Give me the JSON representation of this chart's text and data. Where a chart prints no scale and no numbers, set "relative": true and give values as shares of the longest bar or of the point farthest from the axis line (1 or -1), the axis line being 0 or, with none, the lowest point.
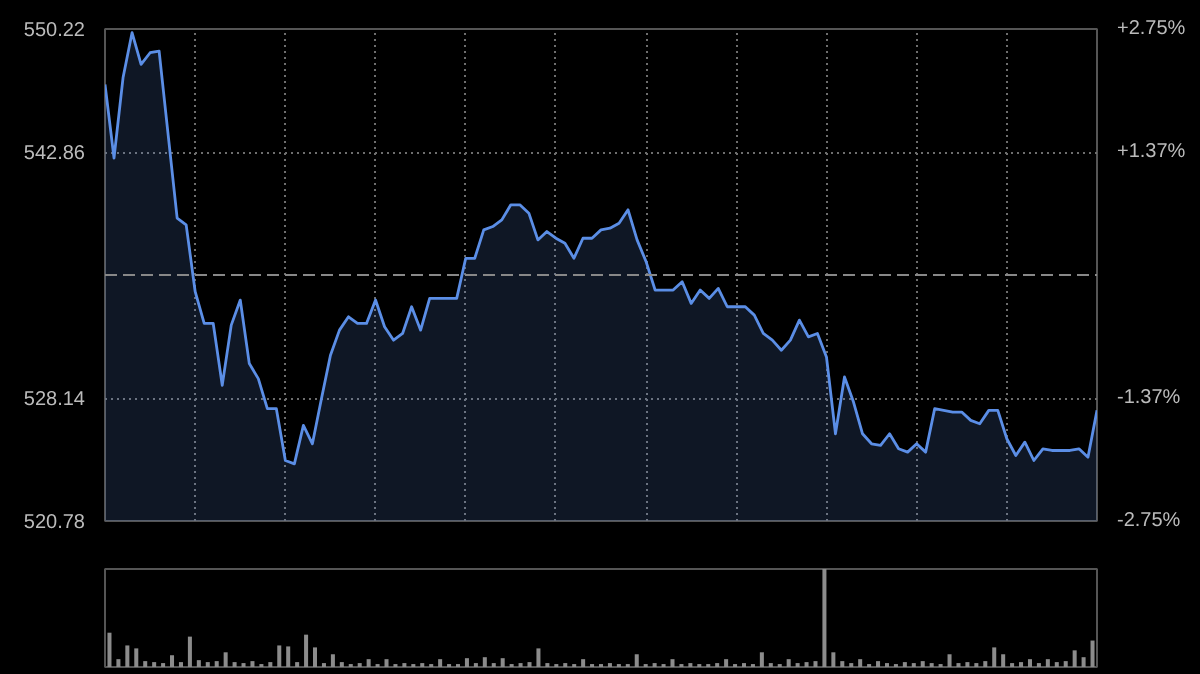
{
  "chart_data": [
    {
      "type": "area",
      "categories": [
        null,
        null,
        null,
        null,
        null,
        null,
        null,
        null,
        null,
        null,
        null,
        null,
        null,
        null,
        null,
        null,
        null,
        null,
        null,
        null,
        null,
        null,
        null,
        null,
        null,
        null,
        null,
        null,
        null,
        null,
        null,
        null,
        null,
        null,
        null,
        null,
        null,
        null,
        null,
        null,
        null,
        null,
        null,
        null,
        null,
        null,
        null,
        null,
        null,
        null,
        null,
        null,
        null,
        null,
        null,
        null,
        null,
        null,
        null,
        null,
        null,
        null,
        null,
        null,
        null,
        null,
        null,
        null,
        null,
        null,
        null,
        null,
        null,
        null,
        null,
        null,
        null,
        null,
        null,
        null,
        null,
        null,
        null,
        null,
        null,
        null,
        null,
        null,
        null,
        null,
        null,
        null,
        null,
        null,
        null,
        null,
        null,
        null,
        null,
        null,
        null,
        null,
        null,
        null,
        null,
        null,
        null,
        null,
        null,
        null,
        null
      ],
      "series": [
        {
          "color": "#5b8ee6",
          "values": [
            546.9,
            542.5,
            547.3,
            550.0,
            548.1,
            548.8,
            548.9,
            543.9,
            538.9,
            538.5,
            534.5,
            532.6,
            532.6,
            528.9,
            532.5,
            534.0,
            530.2,
            529.3,
            527.5,
            527.5,
            524.4,
            524.2,
            526.5,
            525.4,
            528.1,
            530.7,
            532.2,
            533.0,
            532.6,
            532.6,
            534.0,
            532.4,
            531.6,
            532.0,
            533.6,
            532.2,
            534.1,
            534.1,
            534.1,
            534.1,
            536.5,
            536.5,
            538.2,
            538.4,
            538.8,
            539.7,
            539.7,
            539.2,
            537.6,
            538.1,
            537.7,
            537.4,
            536.5,
            537.7,
            537.7,
            538.2,
            538.3,
            538.6,
            539.4,
            537.6,
            536.3,
            534.6,
            534.6,
            534.6,
            535.1,
            533.8,
            534.6,
            534.1,
            534.7,
            533.6,
            533.6,
            533.6,
            533.1,
            532.0,
            531.6,
            531.0,
            531.6,
            532.8,
            531.8,
            532.0,
            530.6,
            526.0,
            529.4,
            527.9,
            526.0,
            525.4,
            525.3,
            526.0,
            525.1,
            524.9,
            525.4,
            524.9,
            527.5,
            527.4,
            527.3,
            527.3,
            526.8,
            526.6,
            527.4,
            527.4,
            525.7,
            524.7,
            525.5,
            524.4,
            525.1,
            525.0,
            525.0,
            525.0,
            525.1,
            524.6,
            527.4
          ]
        }
      ],
      "ylim": [
        520.78,
        550.22
      ],
      "yticks": [
        550.22,
        542.86,
        528.14,
        520.78
      ],
      "y2lim": [
        -2.75,
        2.75
      ],
      "y2ticks": [
        {
          "value": 2.75,
          "label": "+2.75%"
        },
        {
          "value": 1.37,
          "label": "+1.37%"
        },
        {
          "value": -1.37,
          "label": "-1.37%"
        },
        {
          "value": -2.75,
          "label": "-2.75%"
        }
      ],
      "ref_lines": [
        {
          "axis": "y",
          "value": 535.5,
          "color": "#888888",
          "line_style": "dashed"
        }
      ],
      "grid": true,
      "tick_labels": "y"
    },
    {
      "type": "bar",
      "relative": true,
      "categories": [
        null,
        null,
        null,
        null,
        null,
        null,
        null,
        null,
        null,
        null,
        null,
        null,
        null,
        null,
        null,
        null,
        null,
        null,
        null,
        null,
        null,
        null,
        null,
        null,
        null,
        null,
        null,
        null,
        null,
        null,
        null,
        null,
        null,
        null,
        null,
        null,
        null,
        null,
        null,
        null,
        null,
        null,
        null,
        null,
        null,
        null,
        null,
        null,
        null,
        null,
        null,
        null,
        null,
        null,
        null,
        null,
        null,
        null,
        null,
        null,
        null,
        null,
        null,
        null,
        null,
        null,
        null,
        null,
        null,
        null,
        null,
        null,
        null,
        null,
        null,
        null,
        null,
        null,
        null,
        null,
        null,
        null,
        null,
        null,
        null,
        null,
        null,
        null,
        null,
        null,
        null,
        null,
        null,
        null,
        null,
        null,
        null,
        null,
        null,
        null,
        null,
        null,
        null,
        null,
        null,
        null,
        null,
        null,
        null,
        null,
        null
      ],
      "series": [
        {
          "color": "#8c8c8c",
          "values": [
            0.35,
            0.08,
            0.22,
            0.19,
            0.06,
            0.05,
            0.04,
            0.12,
            0.05,
            0.31,
            0.07,
            0.05,
            0.06,
            0.15,
            0.05,
            0.04,
            0.06,
            0.03,
            0.05,
            0.22,
            0.21,
            0.05,
            0.33,
            0.2,
            0.04,
            0.13,
            0.05,
            0.03,
            0.04,
            0.08,
            0.03,
            0.08,
            0.03,
            0.04,
            0.03,
            0.04,
            0.03,
            0.08,
            0.03,
            0.03,
            0.09,
            0.04,
            0.1,
            0.04,
            0.09,
            0.03,
            0.04,
            0.05,
            0.19,
            0.04,
            0.03,
            0.04,
            0.03,
            0.08,
            0.03,
            0.03,
            0.04,
            0.03,
            0.03,
            0.13,
            0.03,
            0.04,
            0.03,
            0.08,
            0.03,
            0.04,
            0.03,
            0.03,
            0.04,
            0.08,
            0.03,
            0.04,
            0.03,
            0.15,
            0.04,
            0.03,
            0.08,
            0.04,
            0.05,
            0.06,
            1.0,
            0.15,
            0.06,
            0.04,
            0.08,
            0.03,
            0.06,
            0.04,
            0.03,
            0.05,
            0.04,
            0.06,
            0.04,
            0.03,
            0.13,
            0.04,
            0.05,
            0.04,
            0.06,
            0.2,
            0.13,
            0.04,
            0.05,
            0.08,
            0.04,
            0.08,
            0.05,
            0.06,
            0.17,
            0.1,
            0.27
          ]
        }
      ]
    }
  ]
}
